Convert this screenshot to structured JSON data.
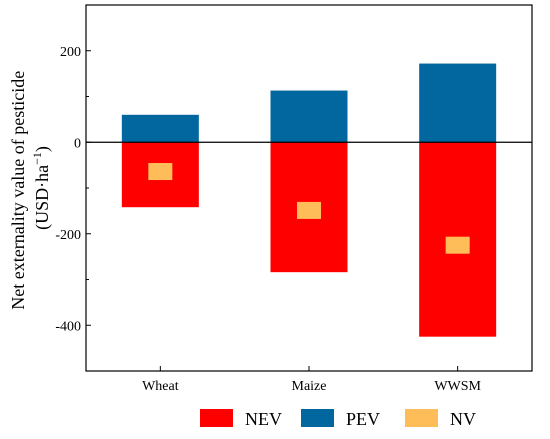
{
  "chart_data": {
    "type": "bar",
    "ylabel_line1": "Net externality value of pesticide",
    "ylabel_line2_prefix": "(USD·ha",
    "ylabel_line2_sup": "−1",
    "ylabel_line2_suffix": ")",
    "ylim": [
      -500,
      300
    ],
    "yticks": [
      200,
      0,
      -200,
      -400
    ],
    "ytick_labels": [
      "200",
      "0",
      "-200",
      "-400"
    ],
    "categories": [
      "Wheat",
      "Maize",
      "WWSM"
    ],
    "series": [
      {
        "name": "NEV",
        "color": "#ff0000",
        "values": [
          -142,
          -284,
          -425
        ]
      },
      {
        "name": "PEV",
        "color": "#02679e",
        "values": [
          60,
          113,
          172
        ]
      },
      {
        "name": "NV",
        "color": "#ffbd59",
        "values": [
          -64,
          -149,
          -225
        ]
      }
    ],
    "legend_position": "bottom",
    "grid": false
  }
}
